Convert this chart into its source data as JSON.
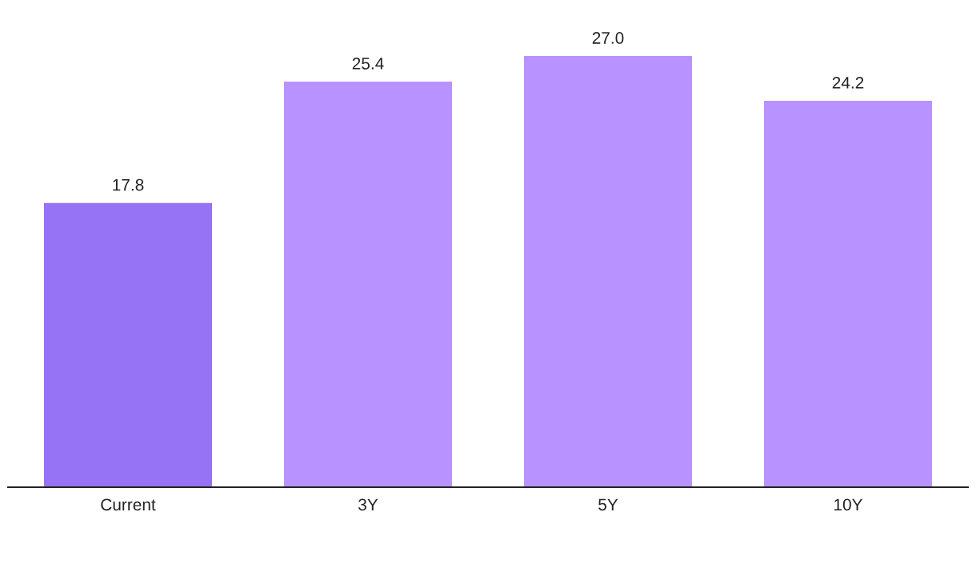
{
  "chart_data": {
    "type": "bar",
    "categories": [
      "Current",
      "3Y",
      "5Y",
      "10Y"
    ],
    "values": [
      17.8,
      25.4,
      27.0,
      24.2
    ],
    "colors": [
      "#9673f4",
      "#b893ff",
      "#b893ff",
      "#b893ff"
    ],
    "value_labels": [
      "17.8",
      "25.4",
      "27.0",
      "24.2"
    ],
    "tick_labels": "x",
    "grid": false,
    "legend": false
  }
}
